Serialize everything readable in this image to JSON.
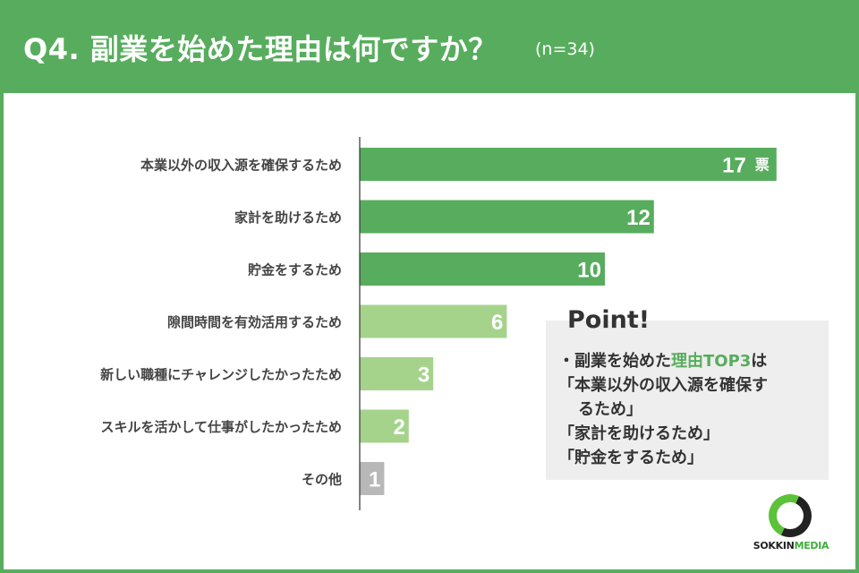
{
  "header": {
    "title": "Q4. 副業を始めた理由は何ですか？",
    "sample": "(n=34)"
  },
  "chart_data": {
    "type": "bar",
    "orientation": "horizontal",
    "categories": [
      "本業以外の収入源を確保するため",
      "家計を助けるため",
      "貯金をするため",
      "隙間時間を有効活用するため",
      "新しい職種にチャレンジしたかったため",
      "スキルを活かして仕事がしたかったため",
      "その他"
    ],
    "values": [
      17,
      12,
      10,
      6,
      3,
      2,
      1
    ],
    "unit_label": "票",
    "bar_colors": [
      "#57ad5d",
      "#57ad5d",
      "#57ad5d",
      "#a5d38c",
      "#a5d38c",
      "#a5d38c",
      "#b8b8b8"
    ],
    "xlim": [
      0,
      20
    ],
    "grid": false,
    "legend": "none"
  },
  "point": {
    "label": "Point!",
    "bullet": "・副業を始めた",
    "highlight": "理由TOP3",
    "suffix": "は",
    "item1a": "「本業以外の収入源を確保す",
    "item1b": "るため」",
    "item2": "「家計を助けるため」",
    "item3": "「貯金をするため」"
  },
  "logo": {
    "part1": "SOKKIN",
    "part2": "MEDIA"
  },
  "colors": {
    "brand": "#57ad5d",
    "light": "#a5d38c",
    "gray": "#b8b8b8",
    "text": "#333333"
  }
}
